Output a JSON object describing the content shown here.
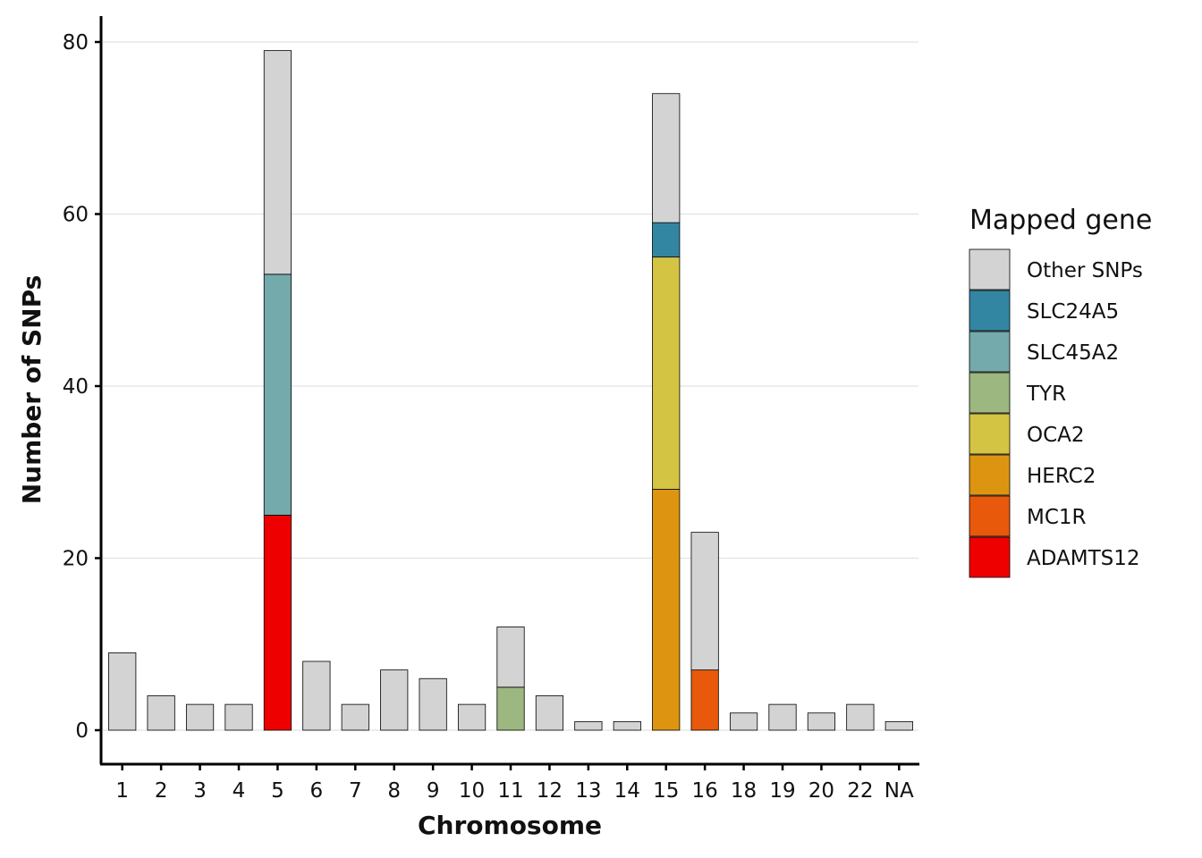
{
  "chart_data": {
    "type": "bar",
    "stacked": true,
    "title": "",
    "xlabel": "Chromosome",
    "ylabel": "Number of SNPs",
    "ylim": [
      -4,
      80.5
    ],
    "yticks": [
      0,
      20,
      40,
      60,
      80
    ],
    "grid": "horizontal major",
    "categories": [
      "1",
      "2",
      "3",
      "4",
      "5",
      "6",
      "7",
      "8",
      "9",
      "10",
      "11",
      "12",
      "13",
      "14",
      "15",
      "16",
      "18",
      "19",
      "20",
      "22",
      "NA"
    ],
    "series": [
      {
        "name": "ADAMTS12",
        "color": "#EE0000",
        "values": [
          0,
          0,
          0,
          0,
          25,
          0,
          0,
          0,
          0,
          0,
          0,
          0,
          0,
          0,
          0,
          0,
          0,
          0,
          0,
          0,
          0
        ]
      },
      {
        "name": "MC1R",
        "color": "#E8590C",
        "values": [
          0,
          0,
          0,
          0,
          0,
          0,
          0,
          0,
          0,
          0,
          0,
          0,
          0,
          0,
          0,
          7,
          0,
          0,
          0,
          0,
          0
        ]
      },
      {
        "name": "HERC2",
        "color": "#DD9511",
        "values": [
          0,
          0,
          0,
          0,
          0,
          0,
          0,
          0,
          0,
          0,
          0,
          0,
          0,
          0,
          28,
          0,
          0,
          0,
          0,
          0,
          0
        ]
      },
      {
        "name": "OCA2",
        "color": "#D4C443",
        "values": [
          0,
          0,
          0,
          0,
          0,
          0,
          0,
          0,
          0,
          0,
          0,
          0,
          0,
          0,
          27,
          0,
          0,
          0,
          0,
          0,
          0
        ]
      },
      {
        "name": "TYR",
        "color": "#9CB780",
        "values": [
          0,
          0,
          0,
          0,
          0,
          0,
          0,
          0,
          0,
          0,
          5,
          0,
          0,
          0,
          0,
          0,
          0,
          0,
          0,
          0,
          0
        ]
      },
      {
        "name": "SLC45A2",
        "color": "#74AAAB",
        "values": [
          0,
          0,
          0,
          0,
          28,
          0,
          0,
          0,
          0,
          0,
          0,
          0,
          0,
          0,
          0,
          0,
          0,
          0,
          0,
          0,
          0
        ]
      },
      {
        "name": "SLC24A5",
        "color": "#3386A1",
        "values": [
          0,
          0,
          0,
          0,
          0,
          0,
          0,
          0,
          0,
          0,
          0,
          0,
          0,
          0,
          4,
          0,
          0,
          0,
          0,
          0,
          0
        ]
      },
      {
        "name": "Other SNPs",
        "color": "#D3D3D3",
        "values": [
          9,
          4,
          3,
          3,
          26,
          8,
          3,
          7,
          6,
          3,
          7,
          4,
          1,
          1,
          15,
          16,
          2,
          3,
          2,
          3,
          1
        ]
      }
    ],
    "legend": {
      "title": "Mapped gene",
      "placement": "right",
      "order": [
        "Other SNPs",
        "SLC24A5",
        "SLC45A2",
        "TYR",
        "OCA2",
        "HERC2",
        "MC1R",
        "ADAMTS12"
      ]
    }
  }
}
